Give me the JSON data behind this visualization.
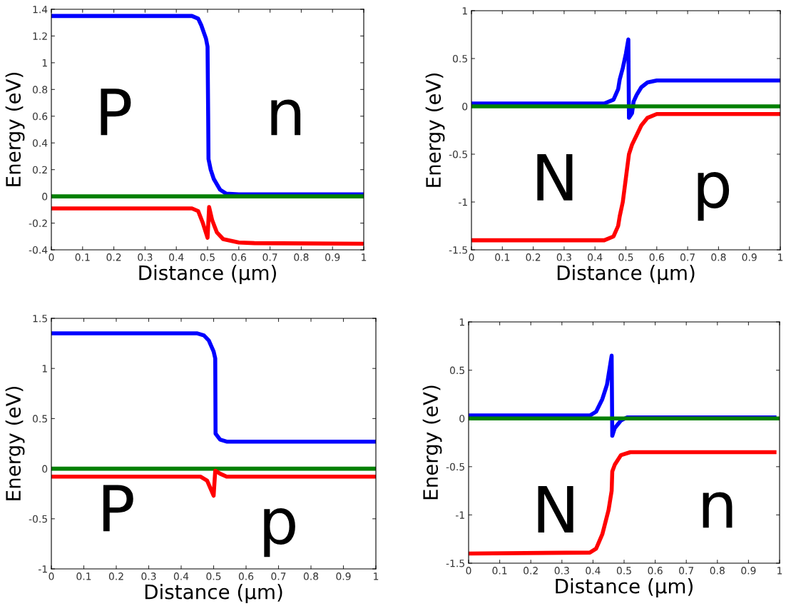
{
  "chart_data": [
    {
      "type": "line",
      "xlabel": "Distance (μm)",
      "ylabel": "Energy (eV)",
      "annotations": [
        "P",
        "n"
      ],
      "xlim": [
        0,
        1
      ],
      "ylim": [
        -0.4,
        1.4
      ],
      "xticks": [
        0,
        0.1,
        0.2,
        0.3,
        0.4,
        0.5,
        0.6,
        0.7,
        0.8,
        0.9,
        1
      ],
      "yticks": [
        -0.4,
        -0.2,
        0,
        0.2,
        0.4,
        0.6,
        0.8,
        1,
        1.2,
        1.4
      ],
      "grid": false,
      "series": [
        {
          "color": "#0000ff",
          "x": [
            0,
            0.45,
            0.47,
            0.48,
            0.495,
            0.5,
            0.502,
            0.503,
            0.51,
            0.52,
            0.54,
            0.56,
            0.6,
            1
          ],
          "values": [
            1.35,
            1.35,
            1.33,
            1.28,
            1.18,
            1.12,
            0.6,
            0.28,
            0.2,
            0.13,
            0.05,
            0.02,
            0.015,
            0.015
          ]
        },
        {
          "color": "#008000",
          "x": [
            0,
            1
          ],
          "values": [
            0,
            0
          ]
        },
        {
          "color": "#ff0000",
          "x": [
            0,
            0.45,
            0.47,
            0.485,
            0.5,
            0.505,
            0.515,
            0.53,
            0.55,
            0.6,
            0.65,
            1
          ],
          "values": [
            -0.09,
            -0.09,
            -0.11,
            -0.2,
            -0.31,
            -0.08,
            -0.18,
            -0.27,
            -0.32,
            -0.345,
            -0.35,
            -0.355
          ]
        }
      ]
    },
    {
      "type": "line",
      "xlabel": "Distance (μm)",
      "ylabel": "Energy (eV)",
      "annotations": [
        "N",
        "p"
      ],
      "xlim": [
        0,
        1
      ],
      "ylim": [
        -1.5,
        1
      ],
      "xticks": [
        0,
        0.1,
        0.2,
        0.3,
        0.4,
        0.5,
        0.6,
        0.7,
        0.8,
        0.9,
        1
      ],
      "yticks": [
        -1.5,
        -1,
        -0.5,
        0,
        0.5,
        1
      ],
      "grid": false,
      "series": [
        {
          "color": "#0000ff",
          "x": [
            0,
            0.43,
            0.46,
            0.475,
            0.48,
            0.49,
            0.5,
            0.508,
            0.51,
            0.52,
            0.525,
            0.535,
            0.55,
            0.57,
            0.6,
            1
          ],
          "values": [
            0.03,
            0.03,
            0.07,
            0.18,
            0.28,
            0.4,
            0.55,
            0.7,
            -0.12,
            -0.07,
            0.05,
            0.12,
            0.2,
            0.25,
            0.27,
            0.27
          ]
        },
        {
          "color": "#008000",
          "x": [
            0,
            1
          ],
          "values": [
            0,
            0
          ]
        },
        {
          "color": "#ff0000",
          "x": [
            0,
            0.43,
            0.46,
            0.475,
            0.48,
            0.49,
            0.5,
            0.51,
            0.52,
            0.535,
            0.55,
            0.57,
            0.6,
            1
          ],
          "values": [
            -1.4,
            -1.4,
            -1.36,
            -1.25,
            -1.15,
            -1.0,
            -0.75,
            -0.5,
            -0.4,
            -0.3,
            -0.2,
            -0.12,
            -0.08,
            -0.08
          ]
        }
      ]
    },
    {
      "type": "line",
      "xlabel": "Distance (μm)",
      "ylabel": "Energy (eV)",
      "annotations": [
        "P",
        "p"
      ],
      "xlim": [
        0,
        1
      ],
      "ylim": [
        -1,
        1.5
      ],
      "xticks": [
        0,
        0.1,
        0.2,
        0.3,
        0.4,
        0.5,
        0.6,
        0.7,
        0.8,
        0.9,
        1
      ],
      "yticks": [
        -1,
        -0.5,
        0,
        0.5,
        1,
        1.5
      ],
      "grid": false,
      "series": [
        {
          "color": "#0000ff",
          "x": [
            0,
            0.45,
            0.47,
            0.485,
            0.5,
            0.505,
            0.506,
            0.52,
            0.54,
            1
          ],
          "values": [
            1.35,
            1.35,
            1.33,
            1.28,
            1.17,
            1.1,
            0.35,
            0.29,
            0.27,
            0.27
          ]
        },
        {
          "color": "#008000",
          "x": [
            0,
            1
          ],
          "values": [
            0,
            0
          ]
        },
        {
          "color": "#ff0000",
          "x": [
            0,
            0.46,
            0.48,
            0.5,
            0.505,
            0.52,
            0.54,
            1
          ],
          "values": [
            -0.08,
            -0.08,
            -0.12,
            -0.27,
            -0.02,
            -0.05,
            -0.08,
            -0.08
          ]
        }
      ]
    },
    {
      "type": "line",
      "xlabel": "Distance (μm)",
      "ylabel": "Energy (eV)",
      "annotations": [
        "N",
        "n"
      ],
      "xlim": [
        0,
        1
      ],
      "ylim": [
        -1.5,
        1
      ],
      "xticks": [
        0,
        0.1,
        0.2,
        0.3,
        0.4,
        0.5,
        0.6,
        0.7,
        0.8,
        0.9,
        1
      ],
      "yticks": [
        -1.5,
        -1,
        -0.5,
        0,
        0.5,
        1
      ],
      "grid": false,
      "series": [
        {
          "color": "#0000ff",
          "x": [
            0,
            0.39,
            0.41,
            0.43,
            0.445,
            0.46,
            0.462,
            0.47,
            0.49,
            0.51,
            0.99
          ],
          "values": [
            0.03,
            0.03,
            0.07,
            0.2,
            0.35,
            0.65,
            -0.18,
            -0.1,
            -0.02,
            0.01,
            0.01
          ]
        },
        {
          "color": "#008000",
          "x": [
            0,
            1
          ],
          "values": [
            0,
            0
          ]
        },
        {
          "color": "#ff0000",
          "x": [
            0,
            0.39,
            0.41,
            0.43,
            0.45,
            0.46,
            0.462,
            0.47,
            0.49,
            0.52,
            0.99
          ],
          "values": [
            -1.4,
            -1.39,
            -1.35,
            -1.2,
            -0.95,
            -0.75,
            -0.55,
            -0.48,
            -0.38,
            -0.35,
            -0.35
          ]
        }
      ]
    }
  ]
}
